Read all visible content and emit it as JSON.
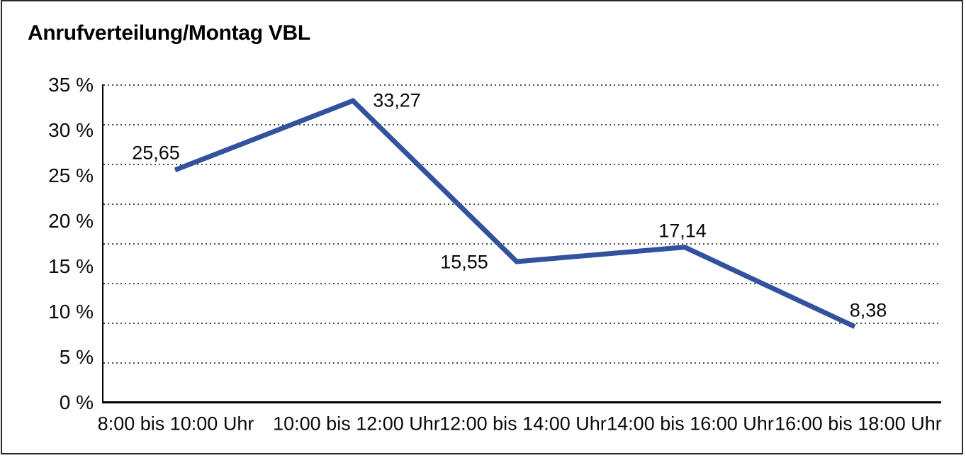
{
  "window": {
    "background": "#ffffff",
    "frame_border_color": "#2b2b2b"
  },
  "header": {
    "title": "Anrufverteilung/Montag VBL"
  },
  "chart_data": {
    "type": "line",
    "title": "Anrufverteilung/Montag VBL",
    "categories": [
      "8:00 bis 10:00 Uhr",
      "10:00 bis 12:00 Uhr",
      "12:00 bis 14:00 Uhr",
      "14:00 bis 16:00 Uhr",
      "16:00 bis 18:00 Uhr"
    ],
    "values": [
      25.65,
      33.27,
      15.55,
      17.14,
      8.38
    ],
    "value_labels": [
      "25,65",
      "33,27",
      "15,55",
      "17,14",
      "8,38"
    ],
    "y_ticks": [
      "35 %",
      "30 %",
      "25 %",
      "20 %",
      "15 %",
      "10 %",
      "5 %",
      "0 %"
    ],
    "ylim": [
      0,
      35
    ],
    "xlabel": "",
    "ylabel": "",
    "legend": "none",
    "grid": "horizontal-dotted",
    "gridline_count": 8,
    "line_color": "#33529E",
    "gridline_color": "#4d4d4d",
    "axis_color": "#000000"
  }
}
